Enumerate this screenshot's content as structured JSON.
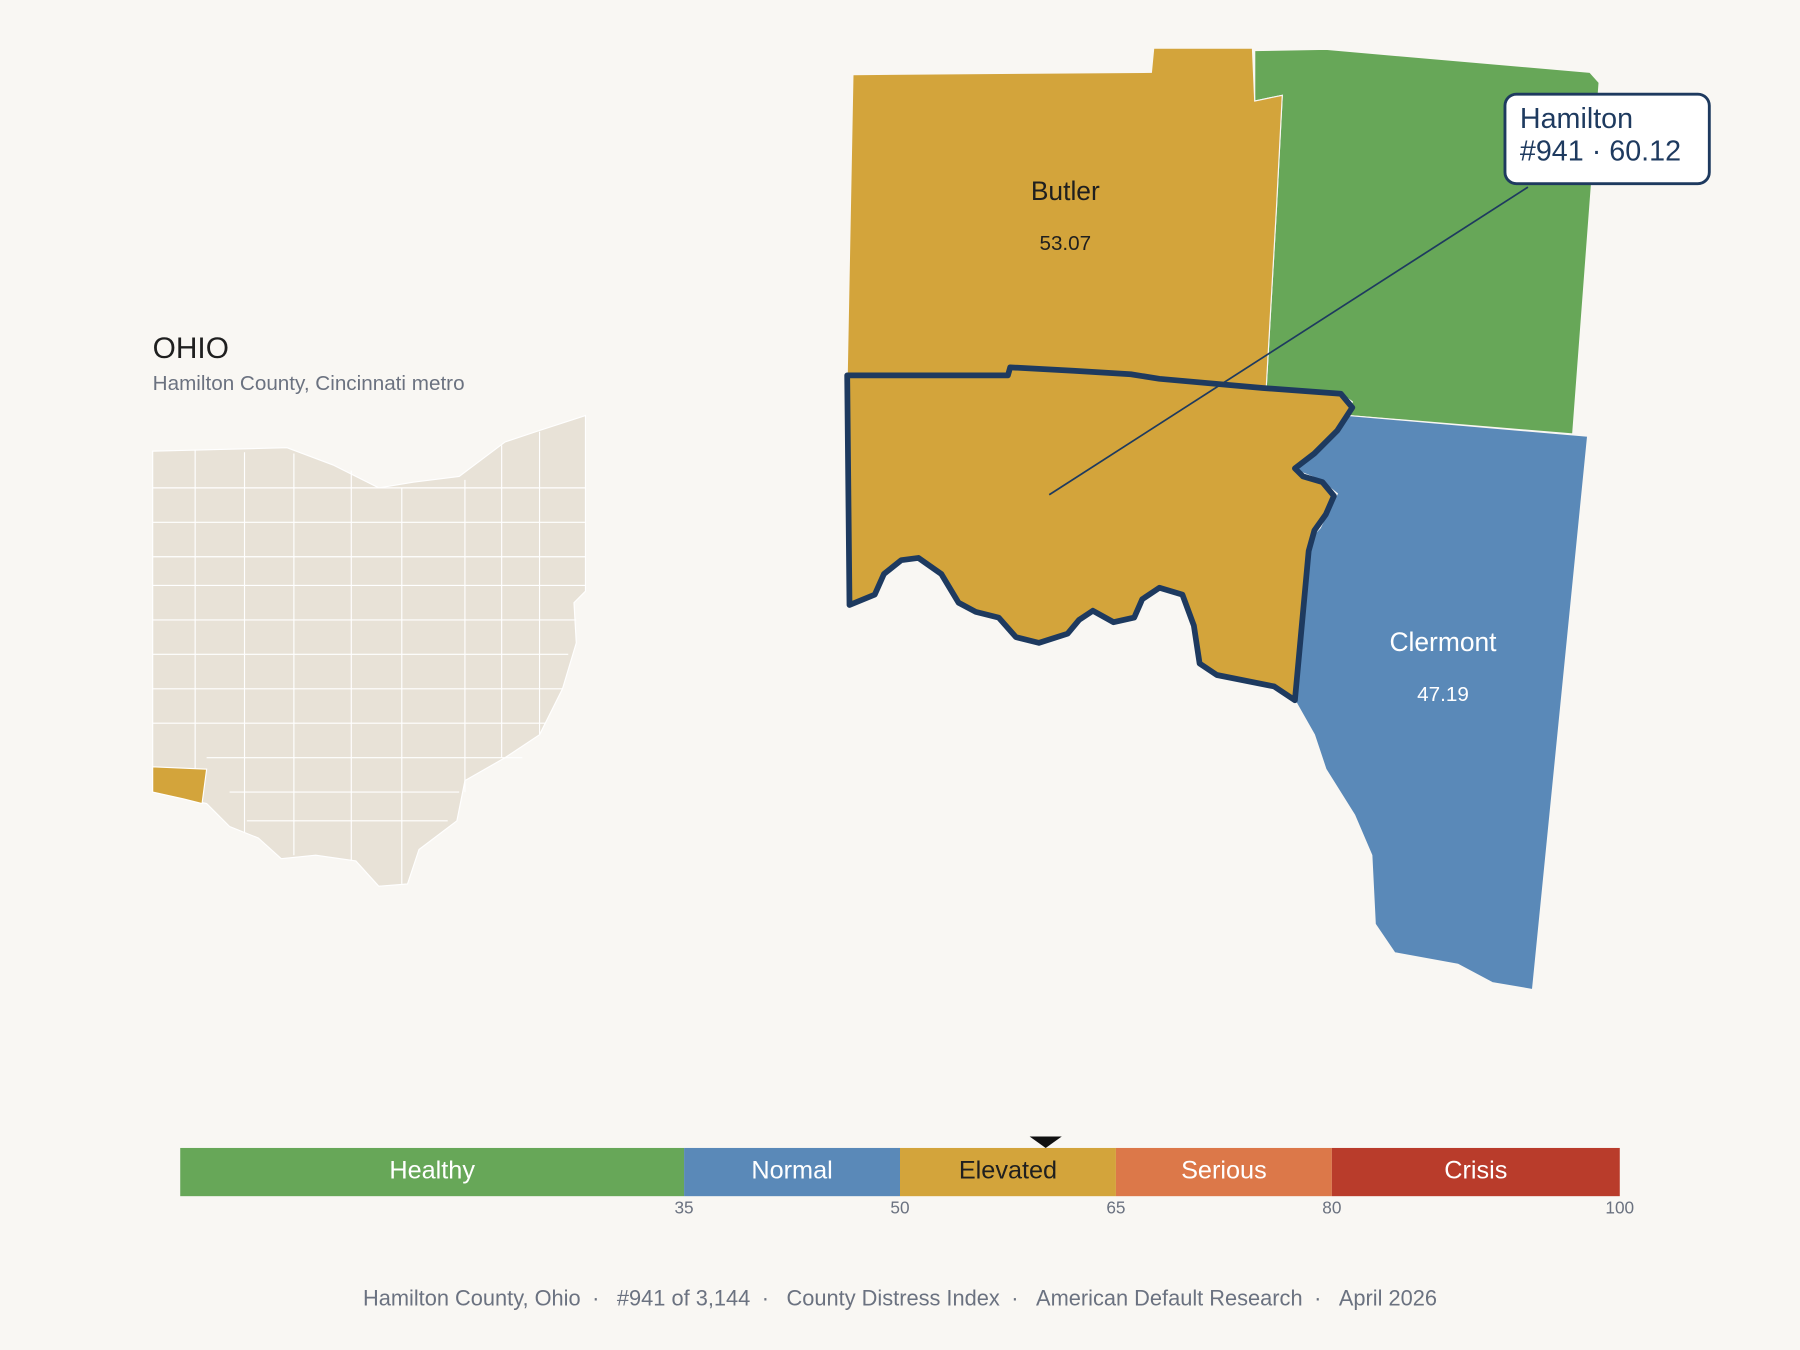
{
  "inset": {
    "title": "OHIO",
    "subtitle": "Hamilton County, Cincinnati metro"
  },
  "counties": [
    {
      "name": "Butler",
      "score": 53.07
    },
    {
      "name": "Clermont",
      "score": 47.19
    }
  ],
  "highlight": {
    "name": "Hamilton",
    "rank_label": "#941",
    "separator": "·",
    "score": 60.12
  },
  "scale": {
    "range": [
      0,
      100
    ],
    "ticks": [
      35,
      50,
      65,
      80,
      100
    ],
    "bands": [
      {
        "name": "Healthy",
        "color": "#67a758",
        "text_color": "#ffffff"
      },
      {
        "name": "Normal",
        "color": "#5a89b8",
        "text_color": "#ffffff"
      },
      {
        "name": "Elevated",
        "color": "#d3a43b",
        "text_color": "#1f1f1f"
      },
      {
        "name": "Serious",
        "color": "#dc7849",
        "text_color": "#ffffff"
      },
      {
        "name": "Crisis",
        "color": "#b93c2b",
        "text_color": "#ffffff"
      }
    ]
  },
  "footer": {
    "items": [
      "Hamilton County, Ohio",
      "#941 of 3,144",
      "County Distress Index",
      "American Default Research",
      "April 2026"
    ],
    "separator": "·"
  }
}
